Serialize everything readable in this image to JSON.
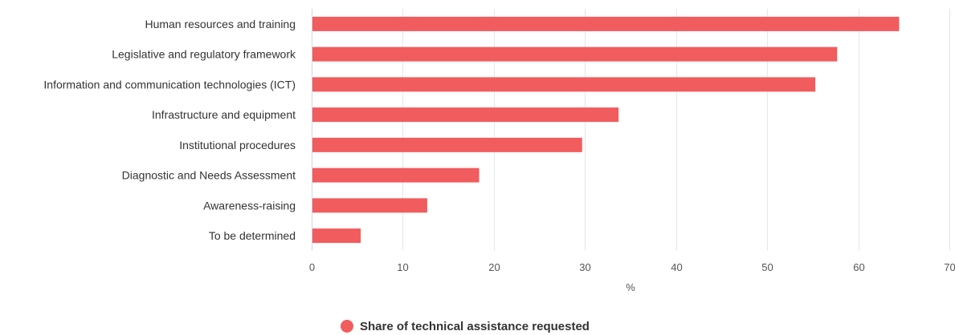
{
  "chart_data": {
    "type": "bar",
    "orientation": "horizontal",
    "categories": [
      "Human resources and training",
      "Legislative and regulatory framework",
      "Information and communication technologies (ICT)",
      "Infrastructure and equipment",
      "Institutional procedures",
      "Diagnostic and Needs Assessment",
      "Awareness-raising",
      "To be determined"
    ],
    "series": [
      {
        "name": "Share of technical assistance requested",
        "color": "#f15c5e",
        "values": [
          64.4,
          57.6,
          55.2,
          33.6,
          29.6,
          18.3,
          12.6,
          5.3
        ]
      }
    ],
    "xlabel": "%",
    "xlim": [
      0,
      70
    ],
    "xticks": [
      0,
      10,
      20,
      30,
      40,
      50,
      60,
      70
    ],
    "grid": true,
    "legend": "bottom-center"
  }
}
